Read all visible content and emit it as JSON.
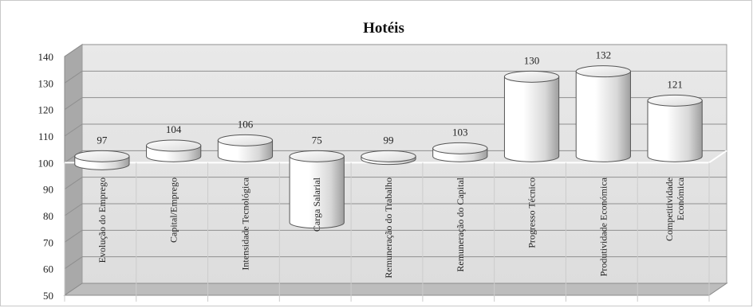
{
  "chart_data": {
    "type": "bar",
    "title": "Hotéis",
    "xlabel": "",
    "ylabel": "",
    "ylim": [
      50,
      140
    ],
    "yticks": [
      50,
      60,
      70,
      80,
      90,
      100,
      110,
      120,
      130,
      140
    ],
    "baseline": 100,
    "grid": true,
    "legend": "none",
    "bar_shape": "cylinder",
    "categories": [
      [
        "Evolução do Emprego"
      ],
      [
        "Capital/Emprego"
      ],
      [
        "Intensidade Tecnológica"
      ],
      [
        "Carga Salarial"
      ],
      [
        "Remuneração do Trabalho"
      ],
      [
        "Remuneração do Capital"
      ],
      [
        "Progresso Técnico"
      ],
      [
        "Produtividade Económica"
      ],
      [
        "Competitividade",
        "Económica"
      ]
    ],
    "values": [
      97,
      104,
      106,
      75,
      99,
      103,
      130,
      132,
      121
    ],
    "colors": {
      "wall": "#e4e4e4",
      "floor": "#bdbdbd",
      "side": "#a9a9a9",
      "grid": "#8f8f8f",
      "bar": "#ffffff"
    }
  }
}
